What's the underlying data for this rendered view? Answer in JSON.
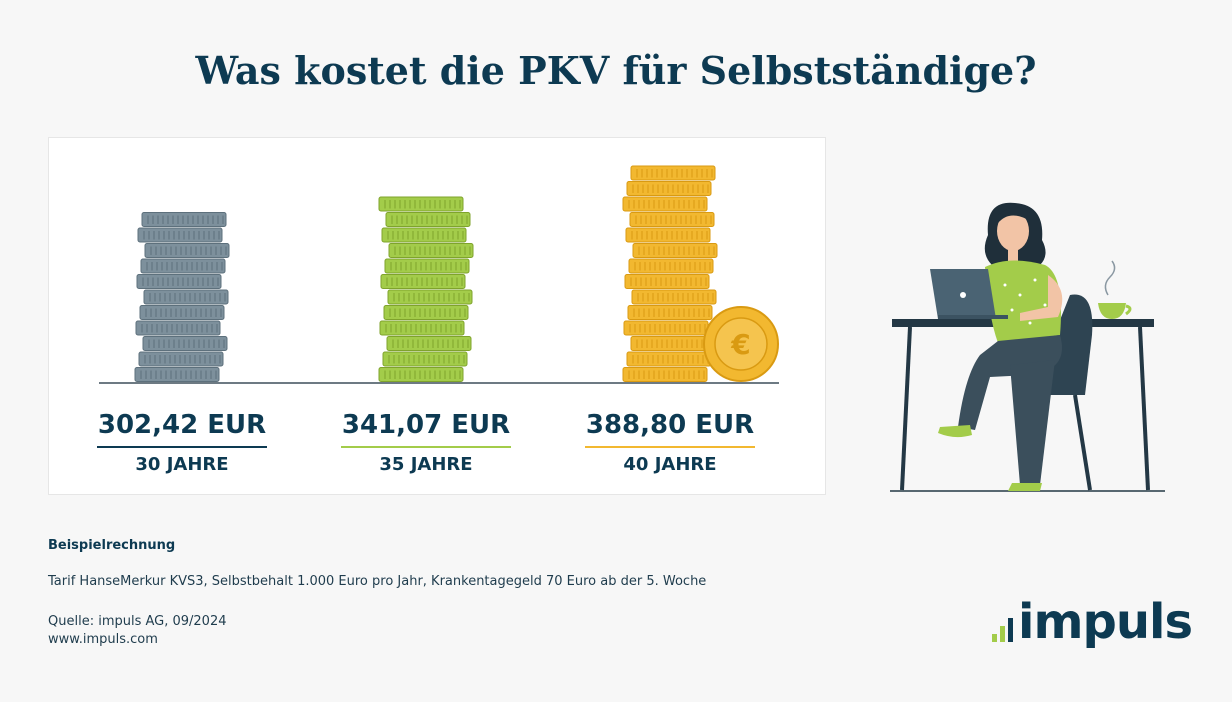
{
  "title": "Was kostet die PKV für Selbstständige?",
  "chart_data": {
    "type": "bar",
    "categories": [
      "30 JAHRE",
      "35 JAHRE",
      "40 JAHRE"
    ],
    "values": [
      302.42,
      341.07,
      388.8
    ],
    "value_labels": [
      "302,42 EUR",
      "341,07 EUR",
      "388,80 EUR"
    ],
    "colors": [
      "#7d909c",
      "#a3cc4a",
      "#f2b830"
    ],
    "unit": "EUR",
    "xlabel": "",
    "ylabel": "",
    "ylim": [
      0,
      400
    ]
  },
  "notes": {
    "heading": "Beispielrechnung",
    "tariff": "Tarif HanseMerkur KVS3, Selbstbehalt 1.000 Euro pro Jahr, Krankentagegeld 70 Euro ab der 5. Woche",
    "source": "Quelle: impuls AG, 09/2024",
    "website": "www.impuls.com"
  },
  "logo": {
    "text": "impuls"
  },
  "icons": {
    "coin": "euro-coin-icon",
    "illustration": "woman-at-laptop-illustration"
  }
}
